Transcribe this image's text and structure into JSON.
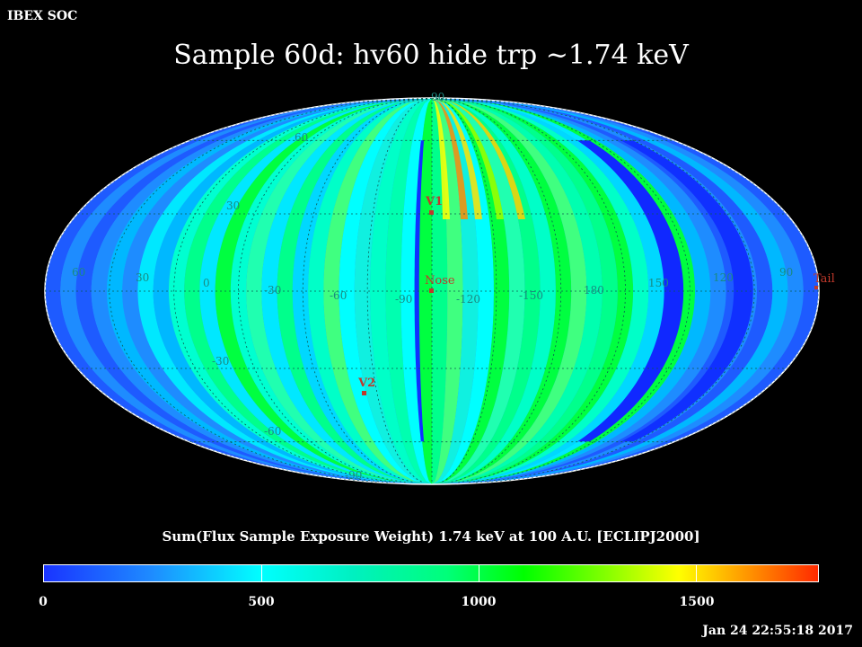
{
  "organization": "IBEX SOC",
  "title": "Sample 60d: hv60 hide trp ~1.74 keV",
  "colorbar": {
    "label": "Sum(Flux Sample Exposure Weight)  1.74 keV at 100 A.U. [ECLIPJ2000]",
    "ticks": [
      "0",
      "500",
      "1000",
      "1500"
    ],
    "tick_values": [
      0,
      500,
      1000,
      1500
    ],
    "range": [
      0,
      1780
    ],
    "colors": [
      "#1a34ff",
      "#00ffff",
      "#00ff7a",
      "#00ff00",
      "#ffff00",
      "#ff2a00"
    ]
  },
  "timestamp": "Jan 24 22:55:18 2017",
  "map": {
    "projection": "Mollweide",
    "latitude_labels": [
      "90",
      "60",
      "30",
      "-30",
      "-60",
      "-90"
    ],
    "longitude_labels": [
      "60",
      "30",
      "0",
      "-30",
      "-60",
      "-90",
      "-120",
      "-150",
      "180",
      "150",
      "120",
      "90"
    ],
    "markers": [
      {
        "label": "V1",
        "color": "#c0392b"
      },
      {
        "label": "Nose",
        "color": "#c0392b"
      },
      {
        "label": "V2",
        "color": "#c0392b"
      },
      {
        "label": "Tail",
        "color": "#c0392b"
      }
    ]
  }
}
